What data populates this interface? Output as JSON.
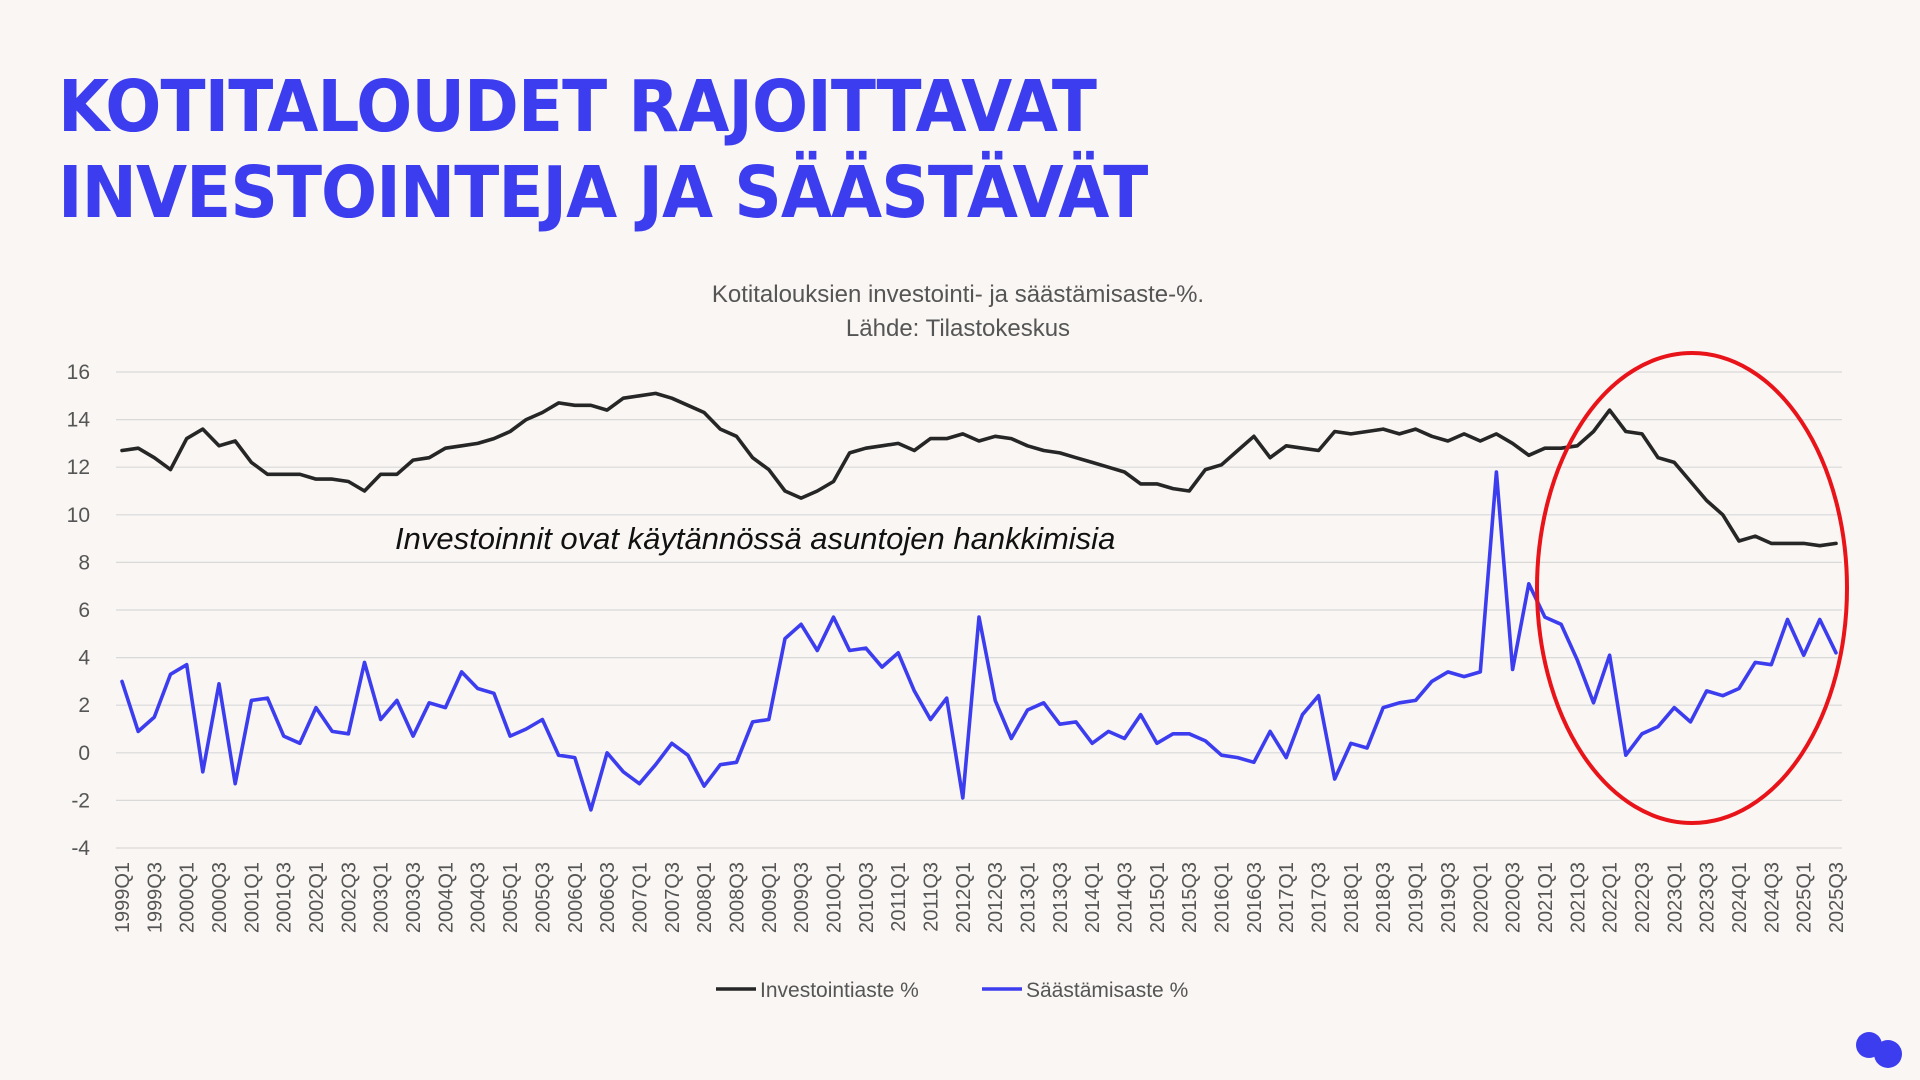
{
  "headline": {
    "line1": "KOTITALOUDET RAJOITTAVAT",
    "line2": "INVESTOINTEJA JA SÄÄSTÄVÄT"
  },
  "colors": {
    "brand": "#3d3df0",
    "investment": "#262626",
    "savings": "#3d3df0",
    "highlight": "#e8141a",
    "grid": "#d9d9d9",
    "text": "#555555"
  },
  "chart_data": {
    "type": "line",
    "title": "Kotitalouksien investointi- ja säästämisaste-%.",
    "subtitle": "Lähde: Tilastokeskus",
    "annotation": "Investoinnit ovat käytännössä asuntojen hankkimisia",
    "highlight": "Red ellipse around 2021Q3–2025Q3",
    "ylim": [
      -4,
      16
    ],
    "yticks": [
      16,
      14,
      12,
      10,
      8,
      6,
      4,
      2,
      0,
      -2,
      -4
    ],
    "grid": true,
    "legend_position": "bottom",
    "xticks": [
      "1999Q1",
      "1999Q3",
      "2000Q1",
      "2000Q3",
      "2001Q1",
      "2001Q3",
      "2002Q1",
      "2002Q3",
      "2003Q1",
      "2003Q3",
      "2004Q1",
      "2004Q3",
      "2005Q1",
      "2005Q3",
      "2006Q1",
      "2006Q3",
      "2007Q1",
      "2007Q3",
      "2008Q1",
      "2008Q3",
      "2009Q1",
      "2009Q3",
      "2010Q1",
      "2010Q3",
      "2011Q1",
      "2011Q3",
      "2012Q1",
      "2012Q3",
      "2013Q1",
      "2013Q3",
      "2014Q1",
      "2014Q3",
      "2015Q1",
      "2015Q3",
      "2016Q1",
      "2016Q3",
      "2017Q1",
      "2017Q3",
      "2018Q1",
      "2018Q3",
      "2019Q1",
      "2019Q3",
      "2020Q1",
      "2020Q3",
      "2021Q1",
      "2021Q3",
      "2022Q1",
      "2022Q3",
      "2023Q1",
      "2023Q3",
      "2024Q1",
      "2024Q3",
      "2025Q1",
      "2025Q3"
    ],
    "x_start": "1999Q1",
    "x_end": "2025Q3",
    "series": [
      {
        "name": "Investointiaste %",
        "values": [
          12.7,
          12.8,
          12.4,
          11.9,
          13.2,
          13.6,
          12.9,
          13.1,
          12.2,
          11.7,
          11.7,
          11.7,
          11.5,
          11.5,
          11.4,
          11.0,
          11.7,
          11.7,
          12.3,
          12.4,
          12.8,
          12.9,
          13.0,
          13.2,
          13.5,
          14.0,
          14.3,
          14.7,
          14.6,
          14.6,
          14.4,
          14.9,
          15.0,
          15.1,
          14.9,
          14.6,
          14.3,
          13.6,
          13.3,
          12.4,
          11.9,
          11.0,
          10.7,
          11.0,
          11.4,
          12.6,
          12.8,
          12.9,
          13.0,
          12.7,
          13.2,
          13.2,
          13.4,
          13.1,
          13.3,
          13.2,
          12.9,
          12.7,
          12.6,
          12.4,
          12.2,
          12.0,
          11.8,
          11.3,
          11.3,
          11.1,
          11.0,
          11.9,
          12.1,
          12.7,
          13.3,
          12.4,
          12.9,
          12.8,
          12.7,
          13.5,
          13.4,
          13.5,
          13.6,
          13.4,
          13.6,
          13.3,
          13.1,
          13.4,
          13.1,
          13.4,
          13.0,
          12.5,
          12.8,
          12.8,
          12.9,
          13.5,
          14.4,
          13.5,
          13.4,
          12.4,
          12.2,
          11.4,
          10.6,
          10.0,
          8.9,
          9.1,
          8.8,
          8.8,
          8.8,
          8.7,
          8.8
        ]
      },
      {
        "name": "Säästämisaste %",
        "values": [
          3.0,
          0.9,
          1.5,
          3.3,
          3.7,
          -0.8,
          2.9,
          -1.3,
          2.2,
          2.3,
          0.7,
          0.4,
          1.9,
          0.9,
          0.8,
          3.8,
          1.4,
          2.2,
          0.7,
          2.1,
          1.9,
          3.4,
          2.7,
          2.5,
          0.7,
          1.0,
          1.4,
          -0.1,
          -0.2,
          -2.4,
          0.0,
          -0.8,
          -1.3,
          -0.5,
          0.4,
          -0.1,
          -1.4,
          -0.5,
          -0.4,
          1.3,
          1.4,
          4.8,
          5.4,
          4.3,
          5.7,
          4.3,
          4.4,
          3.6,
          4.2,
          2.6,
          1.4,
          2.3,
          -1.9,
          5.7,
          2.2,
          0.6,
          1.8,
          2.1,
          1.2,
          1.3,
          0.4,
          0.9,
          0.6,
          1.6,
          0.4,
          0.8,
          0.8,
          0.5,
          -0.1,
          -0.2,
          -0.4,
          0.9,
          -0.2,
          1.6,
          2.4,
          -1.1,
          0.4,
          0.2,
          1.9,
          2.1,
          2.2,
          3.0,
          3.4,
          3.2,
          3.4,
          11.8,
          3.5,
          7.1,
          5.7,
          5.4,
          3.9,
          2.1,
          4.1,
          -0.1,
          0.8,
          1.1,
          1.9,
          1.3,
          2.6,
          2.4,
          2.7,
          3.8,
          3.7,
          5.6,
          4.1,
          5.6,
          4.2
        ]
      }
    ]
  }
}
